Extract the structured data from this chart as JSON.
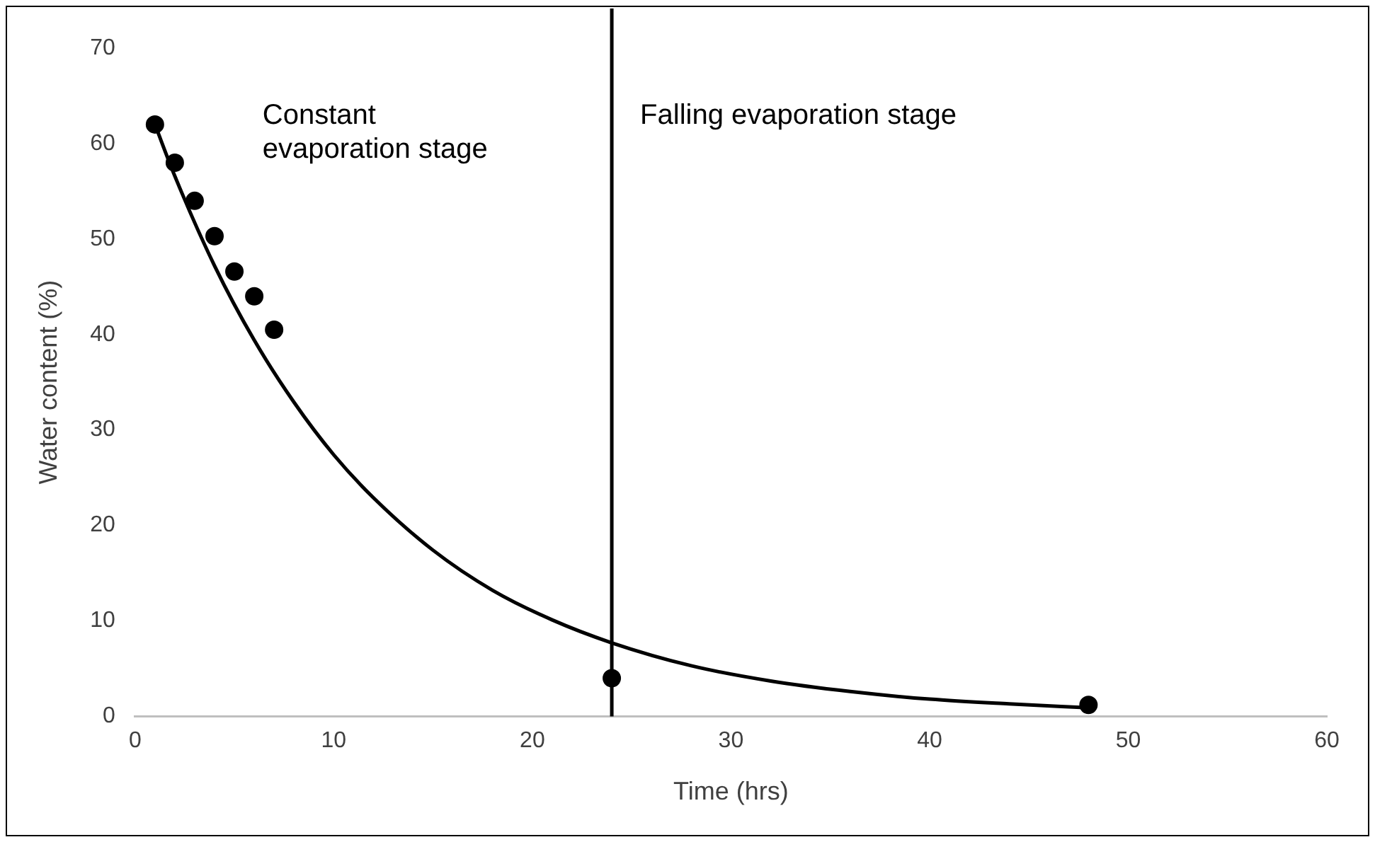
{
  "chart_data": {
    "type": "scatter",
    "xlabel": "Time (hrs)",
    "ylabel": "Water content (%)",
    "annotations": [
      "Constant evaporation stage",
      "Falling evaporation stage"
    ],
    "xlim": [
      0,
      60
    ],
    "xticks": [
      0,
      10,
      20,
      30,
      40,
      50,
      60
    ],
    "ylim": [
      0,
      70
    ],
    "yticks": [
      0,
      10,
      20,
      30,
      40,
      50,
      60,
      70
    ],
    "grid": false,
    "legend": false,
    "marker": "circle",
    "ref_lines": [
      {
        "axis": "x",
        "value": 24,
        "color": "#000000"
      }
    ],
    "series": [
      {
        "color": "#000000",
        "x": [
          1,
          2,
          3,
          4,
          5,
          6,
          7,
          24,
          48
        ],
        "values": [
          62,
          58,
          54,
          50.3,
          46.6,
          44,
          40.5,
          4,
          1.2
        ]
      },
      {
        "type": "line",
        "color": "#000000",
        "marker": "none",
        "x": [
          1,
          2,
          4,
          6,
          8,
          10,
          12,
          15,
          18,
          21,
          24,
          28,
          32,
          36,
          40,
          44,
          48
        ],
        "values": [
          62,
          56.6,
          47.2,
          39.4,
          32.9,
          27.4,
          22.9,
          17.4,
          13.2,
          10.1,
          7.7,
          5.3,
          3.7,
          2.6,
          1.8,
          1.3,
          0.9
        ]
      }
    ]
  }
}
